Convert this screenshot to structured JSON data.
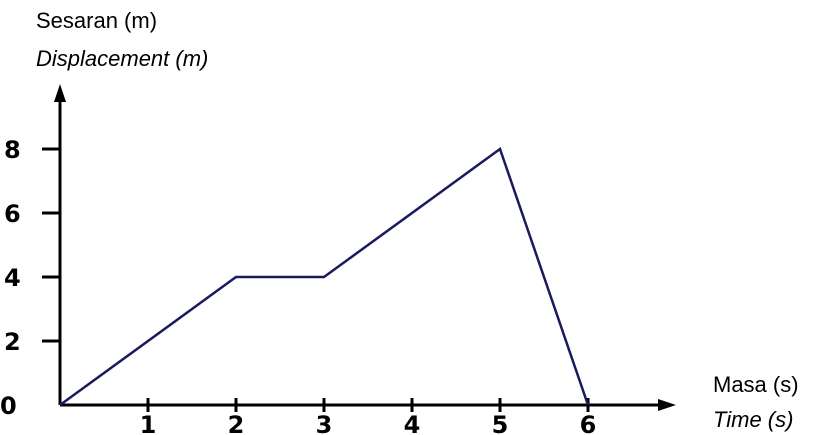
{
  "chart_data": {
    "type": "line",
    "ylabel": "Sesaran (m)",
    "ylabel_translation": "Displacement (m)",
    "xlabel": "Masa (s)",
    "xlabel_translation": "Time (s)",
    "origin_label": "0",
    "x_ticks": [
      "1",
      "2",
      "3",
      "4",
      "5",
      "6"
    ],
    "y_ticks": [
      "2",
      "4",
      "6",
      "8"
    ],
    "xlim": [
      0,
      6
    ],
    "ylim": [
      0,
      8
    ],
    "grid": false,
    "series": [
      {
        "x": [
          0,
          2,
          3,
          5,
          6
        ],
        "y": [
          0,
          4,
          4,
          8,
          0
        ]
      }
    ],
    "colors": {
      "line": "#1a1a5e",
      "axis": "#000000"
    }
  }
}
